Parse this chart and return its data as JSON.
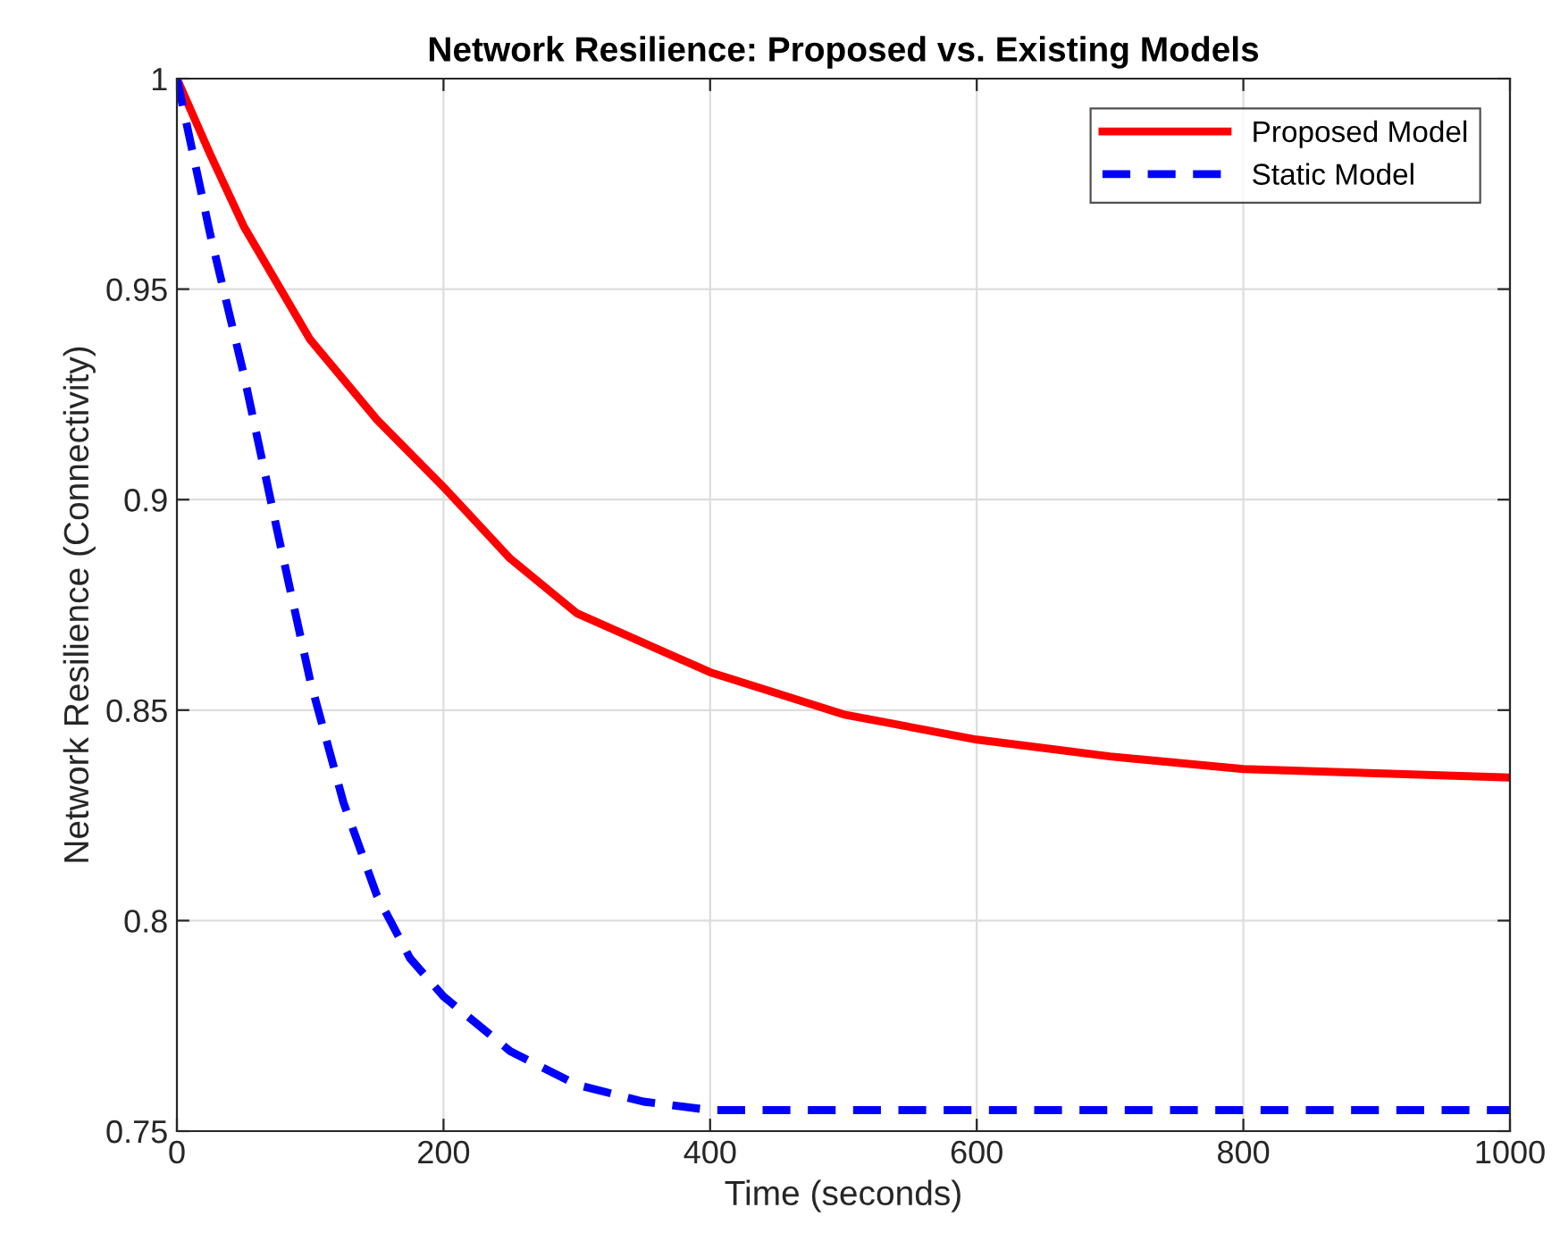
{
  "chart_data": {
    "type": "line",
    "title": "Network Resilience: Proposed vs. Existing Models",
    "xlabel": "Time (seconds)",
    "ylabel": "Network Resilience (Connectivity)",
    "xlim": [
      0,
      1000
    ],
    "ylim": [
      0.75,
      1
    ],
    "xticks": [
      0,
      200,
      400,
      600,
      800,
      1000
    ],
    "yticks": [
      0.75,
      0.8,
      0.85,
      0.9,
      0.95,
      1
    ],
    "grid": true,
    "legend": "top right",
    "series": [
      {
        "name": "Proposed Model",
        "color": "#ff0000",
        "line_style": "solid",
        "x": [
          0,
          25,
          50,
          100,
          150,
          200,
          250,
          300,
          400,
          500,
          600,
          700,
          800,
          900,
          1000
        ],
        "values": [
          1,
          0.982,
          0.965,
          0.938,
          0.919,
          0.903,
          0.886,
          0.873,
          0.859,
          0.849,
          0.843,
          0.839,
          0.836,
          0.835,
          0.834
        ]
      },
      {
        "name": "Static Model",
        "color": "#0000ff",
        "line_style": "dashed",
        "x": [
          0,
          25,
          50,
          75,
          100,
          125,
          150,
          175,
          200,
          250,
          300,
          350,
          400,
          500,
          600,
          800,
          1000
        ],
        "values": [
          1,
          0.963,
          0.93,
          0.893,
          0.857,
          0.828,
          0.806,
          0.791,
          0.782,
          0.769,
          0.761,
          0.757,
          0.755,
          0.755,
          0.755,
          0.755,
          0.755
        ]
      }
    ]
  }
}
